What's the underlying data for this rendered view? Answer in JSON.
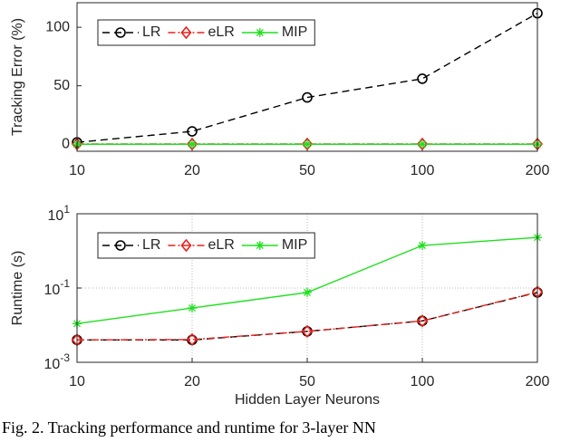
{
  "chart_data": [
    {
      "type": "line",
      "ylabel": "Tracking Error (%)",
      "categories": [
        "10",
        "20",
        "50",
        "100",
        "200"
      ],
      "series": [
        {
          "name": "LR",
          "color": "#000000",
          "marker": "circle",
          "dash": "8 5",
          "values": [
            1.6,
            11,
            40,
            56,
            112
          ]
        },
        {
          "name": "eLR",
          "color": "#e8201c",
          "marker": "diamond",
          "dash": "8 3 2 3",
          "values": [
            0.2,
            0.2,
            0.2,
            0.2,
            0.2
          ]
        },
        {
          "name": "MIP",
          "color": "#1fe01f",
          "marker": "asterisk",
          "dash": "none",
          "values": [
            0,
            0,
            0,
            0,
            0
          ]
        }
      ],
      "ylim": [
        -6,
        121
      ],
      "yticks": [
        0,
        50,
        100
      ],
      "log_scale": false,
      "grid": false,
      "legend": "upper left"
    },
    {
      "type": "line",
      "ylabel": "Runtime (s)",
      "xlabel": "Hidden Layer Neurons",
      "categories": [
        "10",
        "20",
        "50",
        "100",
        "200"
      ],
      "series": [
        {
          "name": "LR",
          "color": "#000000",
          "marker": "circle",
          "dash": "8 5",
          "values": [
            0.004,
            0.004,
            0.0068,
            0.013,
            0.076
          ]
        },
        {
          "name": "eLR",
          "color": "#e8201c",
          "marker": "diamond",
          "dash": "8 3 2 3",
          "values": [
            0.004,
            0.0041,
            0.0068,
            0.013,
            0.078
          ]
        },
        {
          "name": "MIP",
          "color": "#1fe01f",
          "marker": "asterisk",
          "dash": "none",
          "values": [
            0.011,
            0.029,
            0.076,
            1.4,
            2.3
          ]
        }
      ],
      "ylim": [
        0.001,
        10
      ],
      "yticks": [
        {
          "value": 0.001,
          "label": "10^-3"
        },
        {
          "value": 0.1,
          "label": "10^-1"
        },
        {
          "value": 10,
          "label": "10^1"
        }
      ],
      "log_scale": true,
      "grid": true,
      "legend": "upper left"
    }
  ],
  "caption": "Fig. 2. Tracking performance and runtime for 3-layer NN"
}
